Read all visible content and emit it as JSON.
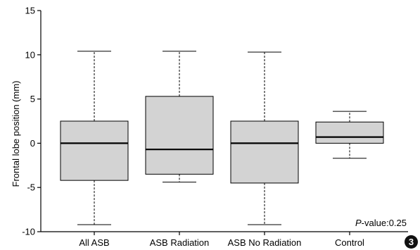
{
  "chart_data": {
    "type": "box",
    "ylabel": "Frontal lobe position (mm)",
    "ylim": [
      -10,
      15
    ],
    "yticks": [
      -10,
      -5,
      0,
      5,
      10,
      15
    ],
    "categories": [
      "All ASB",
      "ASB Radiation",
      "ASB No Radiation",
      "Control"
    ],
    "boxes": [
      {
        "name": "All ASB",
        "whisker_low": -9.2,
        "q1": -4.2,
        "median": 0.0,
        "q3": 2.5,
        "whisker_high": 10.4
      },
      {
        "name": "ASB Radiation",
        "whisker_low": -4.4,
        "q1": -3.5,
        "median": -0.7,
        "q3": 5.3,
        "whisker_high": 10.4
      },
      {
        "name": "ASB No Radiation",
        "whisker_low": -9.2,
        "q1": -4.5,
        "median": 0.0,
        "q3": 2.5,
        "whisker_high": 10.3
      },
      {
        "name": "Control",
        "whisker_low": -1.7,
        "q1": 0.0,
        "median": 0.7,
        "q3": 2.4,
        "whisker_high": 3.6
      }
    ],
    "annotation_prefix": "P",
    "annotation_suffix": "-value:0.25",
    "box_fill": "#d3d3d3",
    "line_color": "#000000",
    "grid": false
  },
  "figure_badge": "3"
}
